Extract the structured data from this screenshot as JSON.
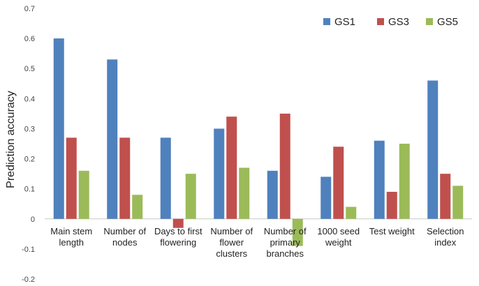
{
  "chart_data": {
    "type": "bar",
    "title": "",
    "xlabel": "",
    "ylabel": "Prediction accuracy",
    "ylim": [
      -0.2,
      0.7
    ],
    "ticks": [
      "0.7",
      "0.6",
      "0.5",
      "0.4",
      "0.3",
      "0.2",
      "0.1",
      "0",
      "-0.1",
      "-0.2"
    ],
    "tick_values": [
      0.7,
      0.6,
      0.5,
      0.4,
      0.3,
      0.2,
      0.1,
      0,
      -0.1,
      -0.2
    ],
    "grid": false,
    "legend_position": "top-right",
    "categories": [
      [
        "Main stem",
        "length"
      ],
      [
        "Number of",
        "nodes"
      ],
      [
        "Days to first",
        "flowering"
      ],
      [
        "Number of",
        "flower",
        "clusters"
      ],
      [
        "Number of",
        "primary",
        "branches"
      ],
      [
        "1000 seed",
        "weight"
      ],
      [
        "Test weight"
      ],
      [
        "Selection",
        "index"
      ]
    ],
    "series": [
      {
        "name": "GS1",
        "color": "#4F81BD",
        "values": [
          0.6,
          0.53,
          0.27,
          0.3,
          0.16,
          0.14,
          0.26,
          0.46
        ]
      },
      {
        "name": "GS3",
        "color": "#C0504D",
        "values": [
          0.27,
          0.27,
          -0.03,
          0.34,
          0.35,
          0.24,
          0.09,
          0.15
        ]
      },
      {
        "name": "GS5",
        "color": "#9BBB59",
        "values": [
          0.16,
          0.08,
          0.15,
          0.17,
          -0.09,
          0.04,
          0.25,
          0.11
        ]
      }
    ]
  }
}
